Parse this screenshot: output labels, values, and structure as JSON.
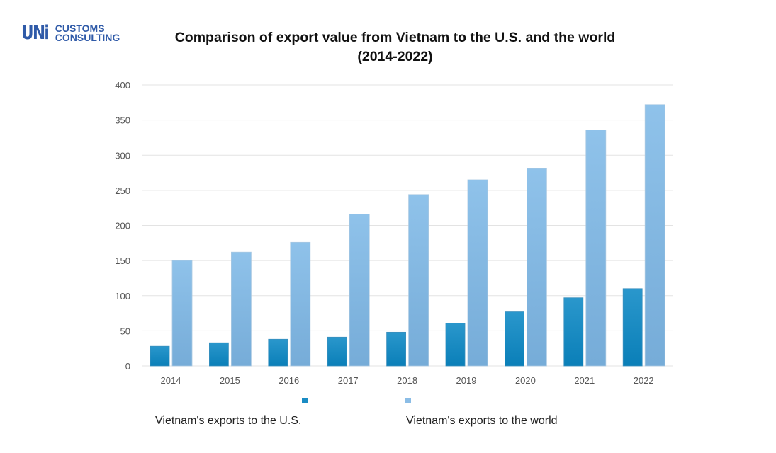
{
  "logo": {
    "mark": "UNi",
    "line1": "CUSTOMS",
    "line2": "CONSULTING"
  },
  "chart_data": {
    "type": "bar",
    "title": "Comparison of export value from Vietnam to the U.S. and the world",
    "subtitle": "(2014-2022)",
    "categories": [
      "2014",
      "2015",
      "2016",
      "2017",
      "2018",
      "2019",
      "2020",
      "2021",
      "2022"
    ],
    "series": [
      {
        "name": "Vietnam's exports to the U.S.",
        "color": "#1a8cc4",
        "values": [
          28,
          33,
          38,
          41,
          48,
          61,
          77,
          97,
          110
        ]
      },
      {
        "name": "Vietnam's exports to the world",
        "color": "#8bbde6",
        "values": [
          150,
          162,
          176,
          216,
          244,
          265,
          281,
          336,
          372
        ]
      }
    ],
    "ylim": [
      0,
      400
    ],
    "yticks": [
      0,
      50,
      100,
      150,
      200,
      250,
      300,
      350,
      400
    ],
    "grid": true,
    "legend": "bottom"
  }
}
